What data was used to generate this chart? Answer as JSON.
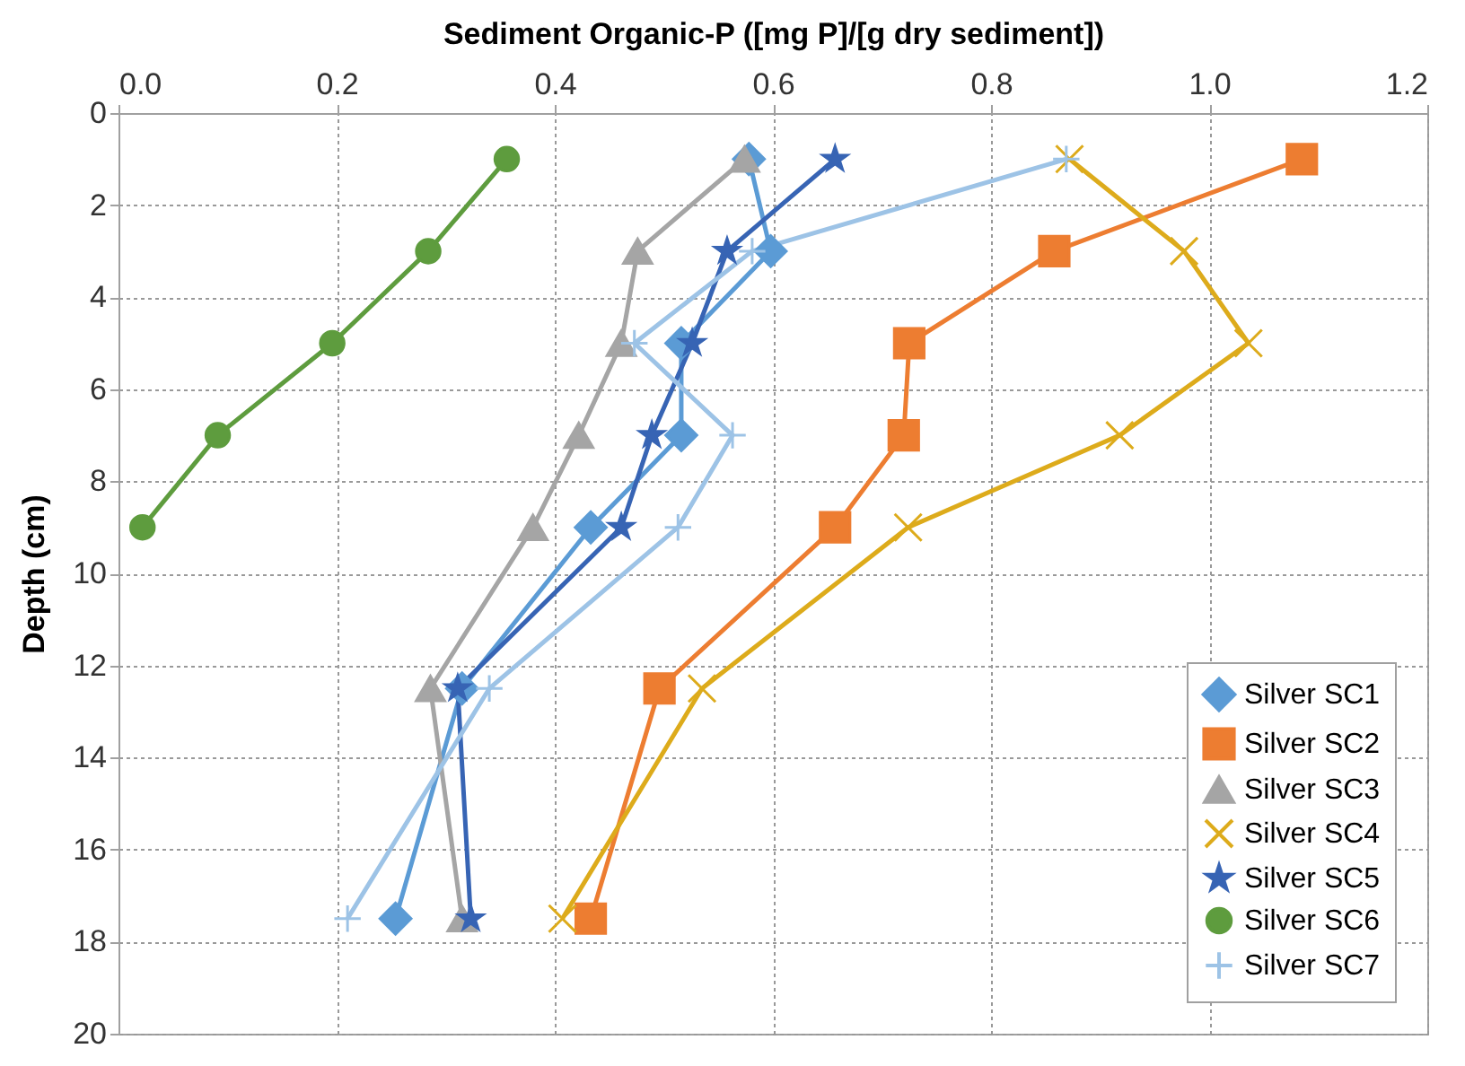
{
  "chart_data": {
    "type": "line",
    "xlabel": "Sediment Organic-P ([mg P]/[g dry sediment])",
    "ylabel": "Depth (cm)",
    "xlim": [
      0,
      1.2
    ],
    "xticks": [
      {
        "value": 0,
        "label": "0.0"
      },
      0.2,
      0.4,
      0.6,
      0.8,
      {
        "value": 1,
        "label": "1.0"
      },
      1.2
    ],
    "ylim": [
      20,
      0
    ],
    "yticks": [
      0,
      2,
      4,
      6,
      8,
      10,
      12,
      14,
      16,
      18,
      20
    ],
    "grid": true,
    "legend": "bottom right",
    "line_style": "solid",
    "series": [
      {
        "name": "Silver SC1",
        "color": "#5b9bd5",
        "marker": "diamond",
        "x": [
          0.578,
          0.598,
          0.516,
          0.516,
          0.433,
          0.315,
          0.254
        ],
        "values": [
          1,
          3,
          5,
          7,
          9,
          12.5,
          17.5
        ]
      },
      {
        "name": "Silver SC2",
        "color": "#ed7d31",
        "marker": "square",
        "x": [
          1.085,
          0.858,
          0.725,
          0.72,
          0.657,
          0.496,
          0.433
        ],
        "values": [
          1,
          3,
          5,
          7,
          9,
          12.5,
          17.5
        ]
      },
      {
        "name": "Silver SC3",
        "color": "#a5a5a5",
        "marker": "triangle",
        "x": [
          0.574,
          0.476,
          0.461,
          0.422,
          0.38,
          0.286,
          0.315
        ],
        "values": [
          1,
          3,
          5,
          7,
          9,
          12.5,
          17.5
        ]
      },
      {
        "name": "Silver SC4",
        "color": "#ddab1b",
        "marker": "cross",
        "x": [
          0.872,
          0.977,
          1.036,
          0.918,
          0.724,
          0.535,
          0.407
        ],
        "values": [
          1,
          3,
          5,
          7,
          9,
          12.5,
          17.5
        ]
      },
      {
        "name": "Silver SC5",
        "color": "#3764b4",
        "marker": "star",
        "x": [
          0.657,
          0.558,
          0.526,
          0.489,
          0.461,
          0.311,
          0.323
        ],
        "values": [
          1,
          3,
          5,
          7,
          9,
          12.5,
          17.5
        ]
      },
      {
        "name": "Silver SC6",
        "color": "#5e9c3e",
        "marker": "circle",
        "x": [
          0.356,
          0.284,
          0.196,
          0.091,
          0.022
        ],
        "values": [
          1,
          3,
          5,
          7,
          9
        ]
      },
      {
        "name": "Silver SC7",
        "color": "#9dc3e6",
        "marker": "plus",
        "x": [
          0.869,
          0.581,
          0.473,
          0.563,
          0.513,
          0.34,
          0.21
        ],
        "values": [
          1,
          3,
          5,
          7,
          9,
          12.5,
          17.5
        ]
      }
    ]
  }
}
